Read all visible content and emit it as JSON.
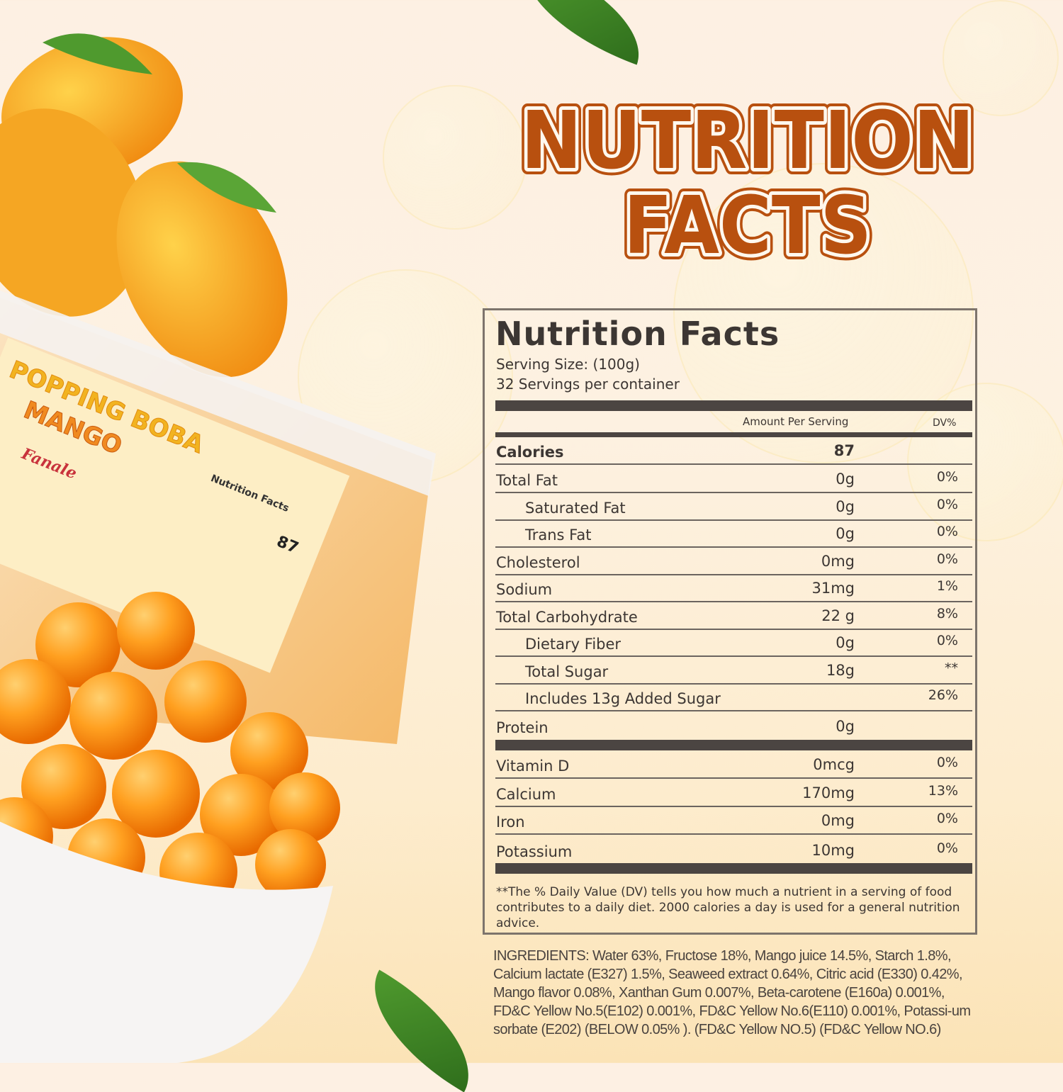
{
  "headline": {
    "line1": "NUTRITION",
    "line2": "FACTS",
    "fill_color": "#b8500f"
  },
  "product_photo": {
    "label_line1": "POPPING BOBA",
    "label_line2": "MANGO",
    "brand": "Fanale",
    "label_nutrition_title": "Nutrition Facts",
    "label_calories": "87"
  },
  "panel": {
    "title": "Nutrition Facts",
    "serving_size": "Serving Size:  (100g)",
    "servings_per_container": "32 Servings per container",
    "header_amount": "Amount Per Serving",
    "header_dv": "DV%",
    "calories_label": "Calories",
    "calories_value": "87",
    "rows": [
      {
        "label": "Total Fat",
        "amount": "0g",
        "dv": "0%"
      },
      {
        "label": "Saturated Fat",
        "amount": "0g",
        "dv": "0%"
      },
      {
        "label": "Trans Fat",
        "amount": "0g",
        "dv": "0%"
      },
      {
        "label": "Cholesterol",
        "amount": "0mg",
        "dv": "0%"
      },
      {
        "label": "Sodium",
        "amount": "31mg",
        "dv": "1%"
      },
      {
        "label": "Total Carbohydrate",
        "amount": "22 g",
        "dv": "8%"
      },
      {
        "label": "Dietary Fiber",
        "amount": "0g",
        "dv": "0%"
      },
      {
        "label": "Total Sugar",
        "amount": "18g",
        "dv": "**"
      },
      {
        "label": "Includes 13g Added Sugar",
        "amount": "",
        "dv": "26%"
      },
      {
        "label": "Protein",
        "amount": "0g",
        "dv": ""
      }
    ],
    "vitamins": [
      {
        "label": "Vitamin D",
        "amount": "0mcg",
        "dv": "0%"
      },
      {
        "label": "Calcium",
        "amount": "170mg",
        "dv": "13%"
      },
      {
        "label": "Iron",
        "amount": "0mg",
        "dv": "0%"
      },
      {
        "label": "Potassium",
        "amount": "10mg",
        "dv": "0%"
      }
    ],
    "footnote": "**The % Daily Value (DV) tells you how much a nutrient in a serving of food contributes to a daily diet. 2000 calories a  day is used for a general nutrition advice."
  },
  "ingredients": "INGREDIENTS: Water 63%, Fructose 18%, Mango juice 14.5%, Starch 1.8%, Calcium lactate (E327) 1.5%, Seaweed extract 0.64%, Citric acid (E330) 0.42%, Mango flavor 0.08%, Xanthan Gum 0.007%, Beta-carotene (E160a) 0.001%, FD&C Yellow No.5(E102) 0.001%, FD&C Yellow No.6(E110) 0.001%, Potassi-um sorbate (E202) (BELOW 0.05% ). (FD&C Yellow NO.5) (FD&C Yellow NO.6)"
}
